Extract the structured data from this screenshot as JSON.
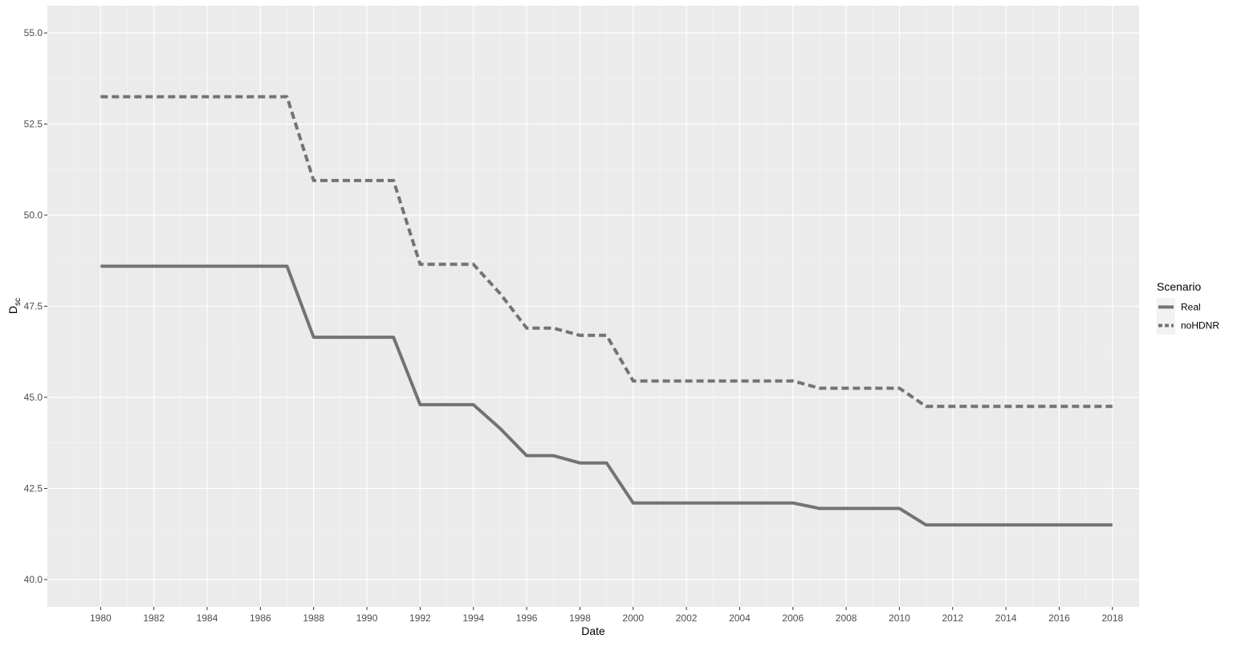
{
  "chart_data": {
    "type": "line",
    "xlabel": "Date",
    "ylabel": {
      "main": "D",
      "subscript": "sc"
    },
    "xlim": [
      1978,
      2019
    ],
    "ylim": [
      39.25,
      55.75
    ],
    "x_ticks": [
      1980,
      1982,
      1984,
      1986,
      1988,
      1990,
      1992,
      1994,
      1996,
      1998,
      2000,
      2002,
      2004,
      2006,
      2008,
      2010,
      2012,
      2014,
      2016,
      2018
    ],
    "y_ticks": [
      40.0,
      42.5,
      45.0,
      47.5,
      50.0,
      52.5,
      55.0
    ],
    "y_tick_labels": [
      "40.0",
      "42.5",
      "45.0",
      "47.5",
      "50.0",
      "52.5",
      "55.0"
    ],
    "grid": true,
    "legend": {
      "title": "Scenario",
      "position": "right"
    },
    "x": [
      1980,
      1981,
      1982,
      1983,
      1984,
      1985,
      1986,
      1987,
      1988,
      1989,
      1990,
      1991,
      1992,
      1993,
      1994,
      1995,
      1996,
      1997,
      1998,
      1999,
      2000,
      2001,
      2002,
      2003,
      2004,
      2005,
      2006,
      2007,
      2008,
      2009,
      2010,
      2011,
      2012,
      2013,
      2014,
      2015,
      2016,
      2017,
      2018
    ],
    "series": [
      {
        "name": "Real",
        "style": "solid",
        "color": "#737373",
        "values": [
          48.6,
          48.6,
          48.6,
          48.6,
          48.6,
          48.6,
          48.6,
          48.6,
          46.65,
          46.65,
          46.65,
          46.65,
          44.8,
          44.8,
          44.8,
          44.15,
          43.4,
          43.4,
          43.2,
          43.2,
          42.1,
          42.1,
          42.1,
          42.1,
          42.1,
          42.1,
          42.1,
          41.95,
          41.95,
          41.95,
          41.95,
          41.5,
          41.5,
          41.5,
          41.5,
          41.5,
          41.5,
          41.5,
          41.5
        ]
      },
      {
        "name": "noHDNR",
        "style": "dashed",
        "color": "#737373",
        "values": [
          53.25,
          53.25,
          53.25,
          53.25,
          53.25,
          53.25,
          53.25,
          53.25,
          50.95,
          50.95,
          50.95,
          50.95,
          48.65,
          48.65,
          48.65,
          47.85,
          46.9,
          46.9,
          46.7,
          46.7,
          45.45,
          45.45,
          45.45,
          45.45,
          45.45,
          45.45,
          45.45,
          45.25,
          45.25,
          45.25,
          45.25,
          44.75,
          44.75,
          44.75,
          44.75,
          44.75,
          44.75,
          44.75,
          44.75
        ]
      }
    ]
  }
}
